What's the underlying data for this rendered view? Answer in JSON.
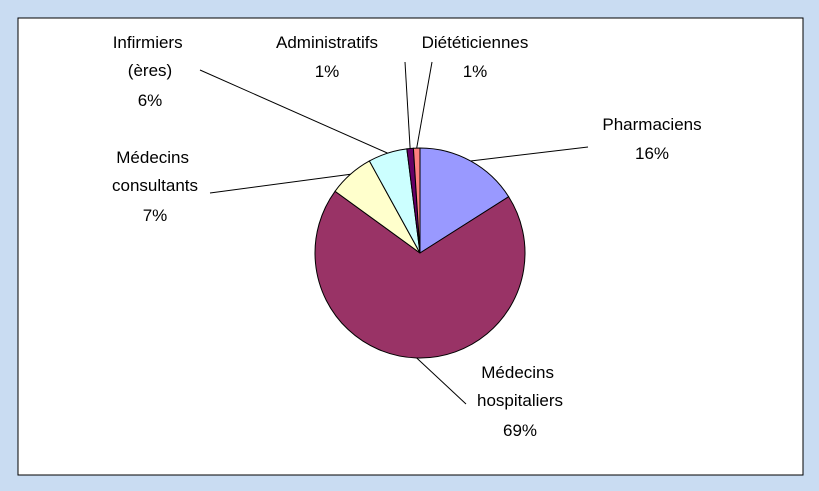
{
  "chart_data": {
    "type": "pie",
    "categories": [
      "Pharmaciens",
      "Médecins hospitaliers",
      "Médecins consultants",
      "Infirmiers (ères)",
      "Administratifs",
      "Diététiciennes"
    ],
    "values": [
      16,
      69,
      7,
      6,
      1,
      1
    ],
    "value_labels": [
      "16%",
      "69%",
      "7%",
      "6%",
      "1%",
      "1%"
    ],
    "colors": [
      "#9999ff",
      "#993366",
      "#ffffcc",
      "#ccffff",
      "#660066",
      "#ff8080"
    ]
  }
}
